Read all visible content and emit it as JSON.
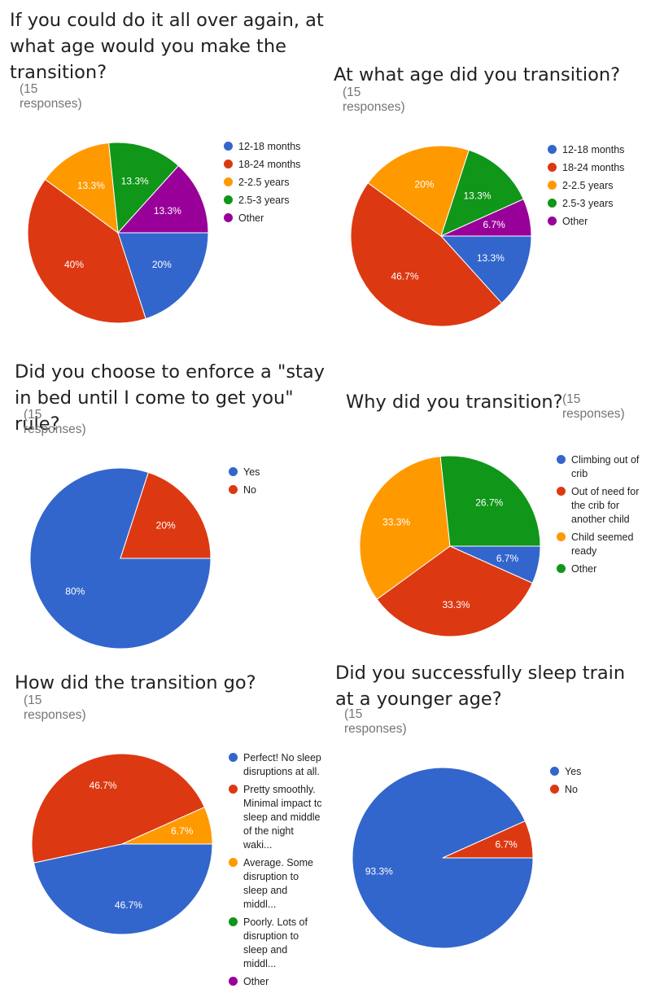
{
  "chart_data": [
    {
      "type": "pie",
      "title": "If you could do it all over again, at what age would you make the transition?",
      "responses": "(15 responses)",
      "legend": [
        "12-18 months",
        "18-24 months",
        "2-2.5 years",
        "2.5-3 years",
        "Other"
      ],
      "slices": [
        {
          "label": "12-18 months",
          "value": 20,
          "display": "20%",
          "color": "#3366cc"
        },
        {
          "label": "18-24 months",
          "value": 40,
          "display": "40%",
          "color": "#dc3912"
        },
        {
          "label": "2-2.5 years",
          "value": 13.3,
          "display": "13.3%",
          "color": "#ff9900"
        },
        {
          "label": "2.5-3 years",
          "value": 13.3,
          "display": "13.3%",
          "color": "#109618"
        },
        {
          "label": "Other",
          "value": 13.3,
          "display": "13.3%",
          "color": "#990099"
        }
      ]
    },
    {
      "type": "pie",
      "title": "At what age did you transition?",
      "responses": "(15 responses)",
      "legend": [
        "12-18 months",
        "18-24 months",
        "2-2.5 years",
        "2.5-3 years",
        "Other"
      ],
      "slices": [
        {
          "label": "12-18 months",
          "value": 13.3,
          "display": "13.3%",
          "color": "#3366cc"
        },
        {
          "label": "18-24 months",
          "value": 46.7,
          "display": "46.7%",
          "color": "#dc3912"
        },
        {
          "label": "2-2.5 years",
          "value": 20,
          "display": "20%",
          "color": "#ff9900"
        },
        {
          "label": "2.5-3 years",
          "value": 13.3,
          "display": "13.3%",
          "color": "#109618"
        },
        {
          "label": "Other",
          "value": 6.7,
          "display": "6.7%",
          "color": "#990099"
        }
      ]
    },
    {
      "type": "pie",
      "title": "Did you choose to enforce a \"stay in bed until I come to get you\" rule?",
      "responses": "(15 responses)",
      "legend": [
        "Yes",
        "No"
      ],
      "slices": [
        {
          "label": "Yes",
          "value": 80,
          "display": "80%",
          "color": "#3366cc"
        },
        {
          "label": "No",
          "value": 20,
          "display": "20%",
          "color": "#dc3912"
        }
      ]
    },
    {
      "type": "pie",
      "title": "Why did you transition?",
      "responses": "(15 responses)",
      "legend": [
        "Climbing out of crib",
        "Out of need for the crib for another child",
        "Child seemed ready",
        "Other"
      ],
      "slices": [
        {
          "label": "Climbing out of crib",
          "value": 6.7,
          "display": "6.7%",
          "color": "#3366cc"
        },
        {
          "label": "Out of need for the crib for another child",
          "value": 33.3,
          "display": "33.3%",
          "color": "#dc3912"
        },
        {
          "label": "Child seemed ready",
          "value": 33.3,
          "display": "33.3%",
          "color": "#ff9900"
        },
        {
          "label": "Other",
          "value": 26.7,
          "display": "26.7%",
          "color": "#109618"
        }
      ]
    },
    {
      "type": "pie",
      "title": "How did the transition go?",
      "responses": "(15 responses)",
      "legend": [
        "Perfect! No sleep disruptions at all.",
        "Pretty smoothly. Minimal impact tc sleep and middle of the night waki...",
        "Average. Some disruption to sleep and middl...",
        "Poorly. Lots of disruption to sleep and middl...",
        "Other"
      ],
      "slices": [
        {
          "label": "Perfect! No sleep disruptions at all.",
          "value": 46.7,
          "display": "46.7%",
          "color": "#3366cc"
        },
        {
          "label": "Pretty smoothly.",
          "value": 46.7,
          "display": "46.7%",
          "color": "#dc3912"
        },
        {
          "label": "Average.",
          "value": 6.7,
          "display": "6.7%",
          "color": "#ff9900"
        },
        {
          "label": "Poorly.",
          "value": 0,
          "display": "",
          "color": "#109618"
        },
        {
          "label": "Other",
          "value": 0,
          "display": "",
          "color": "#990099"
        }
      ]
    },
    {
      "type": "pie",
      "title": "Did you successfully sleep train at a younger age?",
      "responses": "(15 responses)",
      "legend": [
        "Yes",
        "No"
      ],
      "slices": [
        {
          "label": "Yes",
          "value": 93.3,
          "display": "93.3%",
          "color": "#3366cc"
        },
        {
          "label": "No",
          "value": 6.7,
          "display": "6.7%",
          "color": "#dc3912"
        }
      ]
    }
  ]
}
